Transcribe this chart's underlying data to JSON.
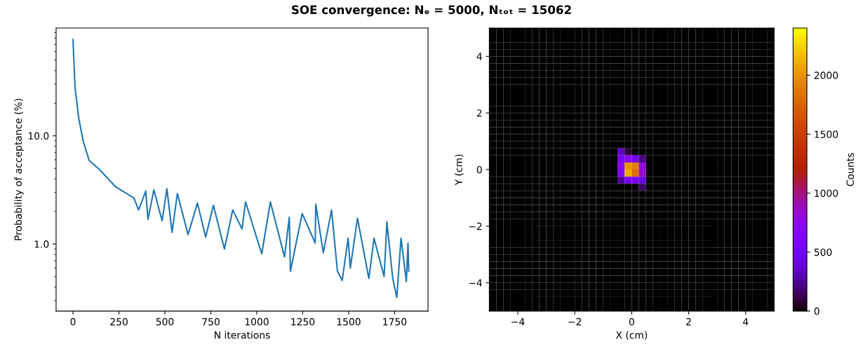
{
  "chart_data": [
    {
      "type": "line",
      "title": "SOE convergence: Nₑ = 5000, Nₜₒₜ = 15062",
      "xlabel": "N iterations",
      "ylabel": "Probability of acceptance (%)",
      "log": "y",
      "grid": false,
      "xlim": [
        -92,
        1932
      ],
      "xticks": [
        0,
        250,
        500,
        750,
        1000,
        1250,
        1500,
        1750
      ],
      "ylim": [
        0.24,
        99
      ],
      "yticks": [
        {
          "value": 1,
          "label": "1.0"
        },
        {
          "value": 10,
          "label": "10.0"
        }
      ],
      "series": [
        {
          "color": "#1f77b4",
          "x": [
            0,
            11,
            31,
            56,
            88,
            146,
            229,
            332,
            357,
            396,
            408,
            440,
            485,
            511,
            539,
            568,
            626,
            677,
            722,
            764,
            824,
            869,
            920,
            939,
            1027,
            1074,
            1151,
            1177,
            1183,
            1247,
            1318,
            1321,
            1362,
            1407,
            1439,
            1465,
            1497,
            1509,
            1548,
            1610,
            1638,
            1693,
            1708,
            1740,
            1762,
            1785,
            1814,
            1823,
            1827
          ],
          "values": [
            77.4,
            28.1,
            14.6,
            8.84,
            5.92,
            4.84,
            3.41,
            2.65,
            2.06,
            3.08,
            1.69,
            3.16,
            1.64,
            3.24,
            1.28,
            2.93,
            1.22,
            2.39,
            1.16,
            2.28,
            0.9,
            2.06,
            1.38,
            2.45,
            0.81,
            2.45,
            0.76,
            1.77,
            0.56,
            1.91,
            1.02,
            2.33,
            0.83,
            2.06,
            0.56,
            0.46,
            1.13,
            0.6,
            1.73,
            0.48,
            1.13,
            0.5,
            1.6,
            0.48,
            0.32,
            1.13,
            0.45,
            1.02,
            0.56
          ]
        }
      ]
    },
    {
      "type": "heatmap",
      "xlabel": "X (cm)",
      "ylabel": "Y (cm)",
      "clabel": "Counts",
      "xlim": [
        -5,
        5
      ],
      "ylim": [
        -5,
        5
      ],
      "xticks": [
        {
          "value": -4,
          "label": "−4"
        },
        {
          "value": -2,
          "label": "−2"
        },
        0,
        2,
        4
      ],
      "yticks": [
        {
          "value": -4,
          "label": "−4"
        },
        {
          "value": -2,
          "label": "−2"
        },
        0,
        2,
        4
      ],
      "clim": [
        0,
        2400
      ],
      "cticks": [
        0,
        500,
        1000,
        1500,
        2000
      ],
      "cells": [
        [
          0,
          0,
          0,
          0,
          0,
          0,
          0,
          0,
          0,
          0,
          0,
          0,
          0,
          0,
          0,
          0,
          0,
          0,
          0,
          0,
          0,
          0,
          0,
          0,
          0,
          0,
          0,
          0,
          0,
          0,
          0,
          0,
          0,
          0,
          0,
          0,
          0,
          0,
          0,
          0
        ],
        [
          0,
          0,
          0,
          0,
          0,
          0,
          0,
          0,
          0,
          0,
          0,
          0,
          0,
          0,
          0,
          0,
          0,
          0,
          0,
          0,
          0,
          0,
          0,
          0,
          0,
          0,
          0,
          0,
          0,
          0,
          0,
          0,
          0,
          0,
          0,
          0,
          0,
          0,
          0,
          0
        ],
        [
          0,
          0,
          0,
          0,
          0,
          0,
          0,
          0,
          0,
          0,
          0,
          0,
          0,
          0,
          0,
          0,
          0,
          0,
          0,
          0,
          0,
          0,
          0,
          0,
          0,
          0,
          0,
          0,
          0,
          0,
          0,
          0,
          0,
          0,
          0,
          0,
          0,
          0,
          0,
          0
        ],
        [
          0,
          0,
          0,
          0,
          0,
          0,
          0,
          0,
          0,
          0,
          0,
          0,
          0,
          0,
          0,
          0,
          0,
          0,
          0,
          0,
          0,
          0,
          0,
          0,
          0,
          0,
          0,
          0,
          0,
          0,
          0,
          0,
          0,
          0,
          0,
          0,
          0,
          0,
          0,
          0
        ],
        [
          0,
          0,
          0,
          0,
          0,
          0,
          0,
          0,
          0,
          0,
          0,
          0,
          0,
          0,
          0,
          0,
          0,
          0,
          0,
          0,
          0,
          0,
          0,
          0,
          0,
          0,
          0,
          0,
          0,
          0,
          0,
          0,
          0,
          0,
          0,
          0,
          0,
          0,
          0,
          0
        ],
        [
          0,
          0,
          0,
          0,
          0,
          0,
          0,
          0,
          0,
          0,
          0,
          0,
          0,
          0,
          0,
          0,
          0,
          0,
          0,
          0,
          0,
          0,
          0,
          0,
          0,
          0,
          0,
          0,
          0,
          0,
          0,
          0,
          0,
          0,
          0,
          0,
          0,
          0,
          0,
          0
        ],
        [
          0,
          0,
          0,
          0,
          0,
          0,
          0,
          0,
          0,
          0,
          0,
          0,
          0,
          0,
          0,
          0,
          0,
          0,
          0,
          0,
          0,
          0,
          0,
          0,
          0,
          0,
          0,
          0,
          0,
          0,
          0,
          0,
          0,
          0,
          0,
          0,
          0,
          0,
          0,
          0
        ],
        [
          0,
          0,
          0,
          0,
          0,
          0,
          0,
          0,
          0,
          0,
          0,
          0,
          0,
          0,
          0,
          0,
          0,
          0,
          0,
          0,
          0,
          0,
          0,
          0,
          0,
          0,
          0,
          0,
          0,
          0,
          0,
          0,
          0,
          0,
          0,
          0,
          0,
          0,
          0,
          0
        ],
        [
          0,
          0,
          0,
          0,
          0,
          0,
          0,
          0,
          0,
          0,
          0,
          0,
          0,
          0,
          0,
          0,
          0,
          0,
          0,
          0,
          0,
          0,
          0,
          0,
          0,
          0,
          0,
          0,
          0,
          0,
          0,
          0,
          0,
          0,
          0,
          0,
          0,
          0,
          0,
          0
        ],
        [
          0,
          0,
          0,
          0,
          0,
          0,
          0,
          0,
          0,
          0,
          0,
          0,
          0,
          0,
          0,
          0,
          0,
          0,
          0,
          0,
          0,
          0,
          0,
          0,
          0,
          0,
          0,
          0,
          0,
          0,
          0,
          0,
          0,
          0,
          0,
          0,
          0,
          0,
          0,
          0
        ],
        [
          0,
          0,
          0,
          0,
          0,
          0,
          0,
          0,
          0,
          0,
          0,
          0,
          0,
          0,
          0,
          0,
          0,
          0,
          0,
          0,
          0,
          0,
          0,
          0,
          0,
          0,
          0,
          0,
          0,
          0,
          0,
          0,
          0,
          0,
          0,
          0,
          0,
          0,
          0,
          0
        ],
        [
          0,
          0,
          0,
          0,
          0,
          0,
          0,
          0,
          0,
          0,
          0,
          0,
          0,
          0,
          0,
          0,
          0,
          0,
          0,
          0,
          0,
          0,
          0,
          0,
          0,
          0,
          0,
          0,
          0,
          0,
          0,
          0,
          0,
          0,
          0,
          0,
          0,
          0,
          0,
          0
        ],
        [
          0,
          0,
          0,
          0,
          0,
          0,
          0,
          0,
          0,
          0,
          0,
          0,
          0,
          0,
          0,
          0,
          0,
          0,
          0,
          0,
          0,
          0,
          0,
          0,
          0,
          0,
          0,
          0,
          0,
          0,
          0,
          0,
          0,
          0,
          0,
          0,
          0,
          0,
          0,
          0
        ],
        [
          0,
          0,
          0,
          0,
          0,
          0,
          0,
          0,
          0,
          0,
          0,
          0,
          0,
          0,
          0,
          0,
          0,
          0,
          0,
          0,
          0,
          0,
          0,
          0,
          0,
          0,
          0,
          0,
          0,
          0,
          0,
          0,
          0,
          0,
          0,
          0,
          0,
          0,
          0,
          0
        ],
        [
          0,
          0,
          0,
          0,
          0,
          0,
          0,
          0,
          0,
          0,
          0,
          0,
          0,
          0,
          0,
          0,
          0,
          0,
          0,
          0,
          0,
          0,
          0,
          0,
          0,
          0,
          0,
          0,
          0,
          0,
          0,
          0,
          0,
          0,
          0,
          0,
          0,
          0,
          0,
          0
        ],
        [
          0,
          0,
          0,
          0,
          0,
          0,
          0,
          0,
          0,
          0,
          0,
          0,
          0,
          0,
          0,
          0,
          0,
          0,
          0,
          0,
          0,
          0,
          0,
          0,
          0,
          0,
          0,
          0,
          0,
          0,
          0,
          0,
          0,
          0,
          0,
          0,
          0,
          0,
          0,
          0
        ],
        [
          0,
          0,
          0,
          0,
          0,
          0,
          0,
          0,
          0,
          0,
          0,
          0,
          0,
          0,
          0,
          0,
          0,
          0,
          0,
          0,
          0,
          0,
          0,
          0,
          0,
          0,
          0,
          0,
          0,
          0,
          0,
          0,
          0,
          0,
          0,
          0,
          0,
          0,
          0,
          0
        ],
        [
          0,
          0,
          0,
          0,
          0,
          0,
          0,
          0,
          0,
          0,
          0,
          0,
          0,
          0,
          0,
          0,
          0,
          0,
          350,
          100,
          0,
          0,
          0,
          0,
          0,
          0,
          0,
          0,
          0,
          0,
          0,
          0,
          0,
          0,
          0,
          0,
          0,
          0,
          0,
          0
        ],
        [
          0,
          0,
          0,
          0,
          0,
          0,
          0,
          0,
          0,
          0,
          0,
          0,
          0,
          0,
          0,
          0,
          0,
          0,
          500,
          700,
          500,
          200,
          0,
          0,
          0,
          0,
          0,
          0,
          0,
          0,
          0,
          0,
          0,
          0,
          0,
          0,
          0,
          0,
          0,
          0
        ],
        [
          0,
          0,
          0,
          0,
          0,
          0,
          0,
          0,
          0,
          0,
          0,
          0,
          0,
          0,
          0,
          0,
          0,
          0,
          700,
          2000,
          1900,
          800,
          0,
          0,
          0,
          0,
          0,
          0,
          0,
          0,
          0,
          0,
          0,
          0,
          0,
          0,
          0,
          0,
          0,
          0
        ],
        [
          0,
          0,
          0,
          0,
          0,
          0,
          0,
          0,
          0,
          0,
          0,
          0,
          0,
          0,
          0,
          0,
          0,
          0,
          600,
          2100,
          1800,
          850,
          0,
          0,
          0,
          0,
          0,
          0,
          0,
          0,
          0,
          0,
          0,
          0,
          0,
          0,
          0,
          0,
          0,
          0
        ],
        [
          0,
          0,
          0,
          0,
          0,
          0,
          0,
          0,
          0,
          0,
          0,
          0,
          0,
          0,
          0,
          0,
          0,
          0,
          250,
          500,
          550,
          400,
          0,
          0,
          0,
          0,
          0,
          0,
          0,
          0,
          0,
          0,
          0,
          0,
          0,
          0,
          0,
          0,
          0,
          0
        ],
        [
          0,
          0,
          0,
          0,
          0,
          0,
          0,
          0,
          0,
          0,
          0,
          0,
          0,
          0,
          0,
          0,
          0,
          0,
          0,
          0,
          0,
          150,
          0,
          0,
          0,
          0,
          0,
          0,
          0,
          0,
          0,
          0,
          0,
          0,
          0,
          0,
          0,
          0,
          0,
          0
        ],
        [
          0,
          0,
          0,
          0,
          0,
          0,
          0,
          0,
          0,
          0,
          0,
          0,
          0,
          0,
          0,
          0,
          0,
          0,
          0,
          0,
          0,
          0,
          0,
          0,
          0,
          0,
          0,
          0,
          0,
          0,
          0,
          0,
          0,
          0,
          0,
          0,
          0,
          0,
          0,
          0
        ],
        [
          0,
          0,
          0,
          0,
          0,
          0,
          0,
          0,
          0,
          0,
          0,
          0,
          0,
          0,
          0,
          0,
          0,
          0,
          0,
          0,
          0,
          0,
          0,
          0,
          0,
          0,
          0,
          0,
          0,
          0,
          0,
          0,
          0,
          0,
          0,
          0,
          0,
          0,
          0,
          0
        ],
        [
          0,
          0,
          0,
          0,
          0,
          0,
          0,
          0,
          0,
          0,
          0,
          0,
          0,
          0,
          0,
          0,
          0,
          0,
          0,
          0,
          0,
          0,
          0,
          0,
          0,
          0,
          0,
          0,
          0,
          0,
          0,
          0,
          0,
          0,
          0,
          0,
          0,
          0,
          0,
          0
        ],
        [
          0,
          0,
          0,
          0,
          0,
          0,
          0,
          0,
          0,
          0,
          0,
          0,
          0,
          0,
          0,
          0,
          0,
          0,
          0,
          0,
          0,
          0,
          0,
          0,
          0,
          0,
          0,
          0,
          0,
          0,
          0,
          0,
          0,
          0,
          0,
          0,
          0,
          0,
          0,
          0
        ],
        [
          0,
          0,
          0,
          0,
          0,
          0,
          0,
          0,
          0,
          0,
          0,
          0,
          0,
          0,
          0,
          0,
          0,
          0,
          0,
          0,
          0,
          0,
          0,
          0,
          0,
          0,
          0,
          0,
          0,
          0,
          0,
          0,
          0,
          0,
          0,
          0,
          0,
          0,
          0,
          0
        ],
        [
          0,
          0,
          0,
          0,
          0,
          0,
          0,
          0,
          0,
          0,
          0,
          0,
          0,
          0,
          0,
          0,
          0,
          0,
          0,
          0,
          0,
          0,
          0,
          0,
          0,
          0,
          0,
          0,
          0,
          0,
          0,
          0,
          0,
          0,
          0,
          0,
          0,
          0,
          0,
          0
        ],
        [
          0,
          0,
          0,
          0,
          0,
          0,
          0,
          0,
          0,
          0,
          0,
          0,
          0,
          0,
          0,
          0,
          0,
          0,
          0,
          0,
          0,
          0,
          0,
          0,
          0,
          0,
          0,
          0,
          0,
          0,
          0,
          0,
          0,
          0,
          0,
          0,
          0,
          0,
          0,
          0
        ],
        [
          0,
          0,
          0,
          0,
          0,
          0,
          0,
          0,
          0,
          0,
          0,
          0,
          0,
          0,
          0,
          0,
          0,
          0,
          0,
          0,
          0,
          0,
          0,
          0,
          0,
          0,
          0,
          0,
          0,
          0,
          0,
          0,
          0,
          0,
          0,
          0,
          0,
          0,
          0,
          0
        ],
        [
          0,
          0,
          0,
          0,
          0,
          0,
          0,
          0,
          0,
          0,
          0,
          0,
          0,
          0,
          0,
          0,
          0,
          0,
          0,
          0,
          0,
          0,
          0,
          0,
          0,
          0,
          0,
          0,
          0,
          0,
          0,
          0,
          0,
          0,
          0,
          0,
          0,
          0,
          0,
          0
        ],
        [
          0,
          0,
          0,
          0,
          0,
          0,
          0,
          0,
          0,
          0,
          0,
          0,
          0,
          0,
          0,
          0,
          0,
          0,
          0,
          0,
          0,
          0,
          0,
          0,
          0,
          0,
          0,
          0,
          0,
          0,
          0,
          0,
          0,
          0,
          0,
          0,
          0,
          0,
          0,
          0
        ],
        [
          0,
          0,
          0,
          0,
          0,
          0,
          0,
          0,
          0,
          0,
          0,
          0,
          0,
          0,
          0,
          0,
          0,
          0,
          0,
          0,
          0,
          0,
          0,
          0,
          0,
          0,
          0,
          0,
          0,
          0,
          0,
          0,
          0,
          0,
          0,
          0,
          0,
          0,
          0,
          0
        ],
        [
          0,
          0,
          0,
          0,
          0,
          0,
          0,
          0,
          0,
          0,
          0,
          0,
          0,
          0,
          0,
          0,
          0,
          0,
          0,
          0,
          0,
          0,
          0,
          0,
          0,
          0,
          0,
          0,
          0,
          0,
          0,
          0,
          0,
          0,
          0,
          0,
          0,
          0,
          0,
          0
        ],
        [
          0,
          0,
          0,
          0,
          0,
          0,
          0,
          0,
          0,
          0,
          0,
          0,
          0,
          0,
          0,
          0,
          0,
          0,
          0,
          0,
          0,
          0,
          0,
          0,
          0,
          0,
          0,
          0,
          0,
          0,
          0,
          0,
          0,
          0,
          0,
          0,
          0,
          0,
          0,
          0
        ],
        [
          0,
          0,
          0,
          0,
          0,
          0,
          0,
          0,
          0,
          0,
          0,
          0,
          0,
          0,
          0,
          0,
          0,
          0,
          0,
          0,
          0,
          0,
          0,
          0,
          0,
          0,
          0,
          0,
          0,
          0,
          0,
          0,
          0,
          0,
          0,
          0,
          0,
          0,
          0,
          0
        ],
        [
          0,
          0,
          0,
          0,
          0,
          0,
          0,
          0,
          0,
          0,
          0,
          0,
          0,
          0,
          0,
          0,
          0,
          0,
          0,
          0,
          0,
          0,
          0,
          0,
          0,
          0,
          0,
          0,
          0,
          0,
          0,
          0,
          0,
          0,
          0,
          0,
          0,
          0,
          0,
          0
        ],
        [
          0,
          0,
          0,
          0,
          0,
          0,
          0,
          0,
          0,
          0,
          0,
          0,
          0,
          0,
          0,
          0,
          0,
          0,
          0,
          0,
          0,
          0,
          0,
          0,
          0,
          0,
          0,
          0,
          0,
          0,
          0,
          0,
          0,
          0,
          0,
          0,
          0,
          0,
          0,
          0
        ],
        [
          0,
          0,
          0,
          0,
          0,
          0,
          0,
          0,
          0,
          0,
          0,
          0,
          0,
          0,
          0,
          0,
          0,
          0,
          0,
          0,
          0,
          0,
          0,
          0,
          0,
          0,
          0,
          0,
          0,
          0,
          0,
          0,
          0,
          0,
          0,
          0,
          0,
          0,
          0,
          0
        ]
      ]
    }
  ]
}
